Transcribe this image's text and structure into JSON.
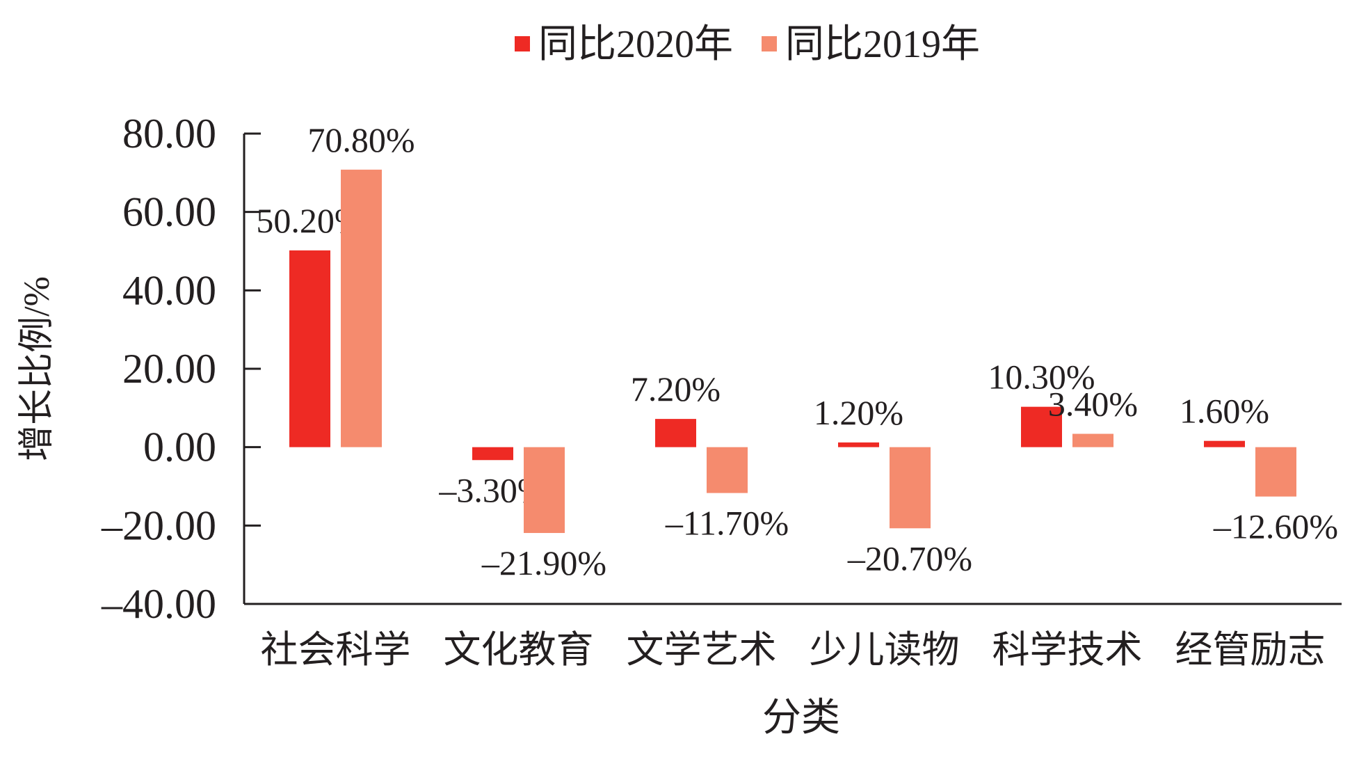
{
  "chart_data": {
    "type": "bar",
    "title": "",
    "xlabel": "分类",
    "ylabel": "增长比例/%",
    "categories": [
      "社会科学",
      "文化教育",
      "文学艺术",
      "少儿读物",
      "科学技术",
      "经管励志"
    ],
    "series": [
      {
        "name": "同比2020年",
        "color": "#EE2A24",
        "values": [
          50.2,
          -3.3,
          7.2,
          1.2,
          10.3,
          1.6
        ],
        "labels": [
          "50.20%",
          "-3.30%",
          "7.20%",
          "1.20%",
          "10.30%",
          "1.60%"
        ]
      },
      {
        "name": "同比2019年",
        "color": "#F58B6E",
        "values": [
          70.8,
          -21.9,
          -11.7,
          -20.7,
          3.4,
          -12.6
        ],
        "labels": [
          "70.80%",
          "-21.90%",
          "-11.70%",
          "-20.70%",
          "3.40%",
          "-12.60%"
        ]
      }
    ],
    "ylim": [
      -40,
      80
    ],
    "yticks": [
      "80.00",
      "60.00",
      "40.00",
      "20.00",
      "0.00",
      "-20.00",
      "-40.00"
    ],
    "ytick_values": [
      80,
      60,
      40,
      20,
      0,
      -20,
      -40
    ],
    "grid": false,
    "legend": "top-center"
  }
}
